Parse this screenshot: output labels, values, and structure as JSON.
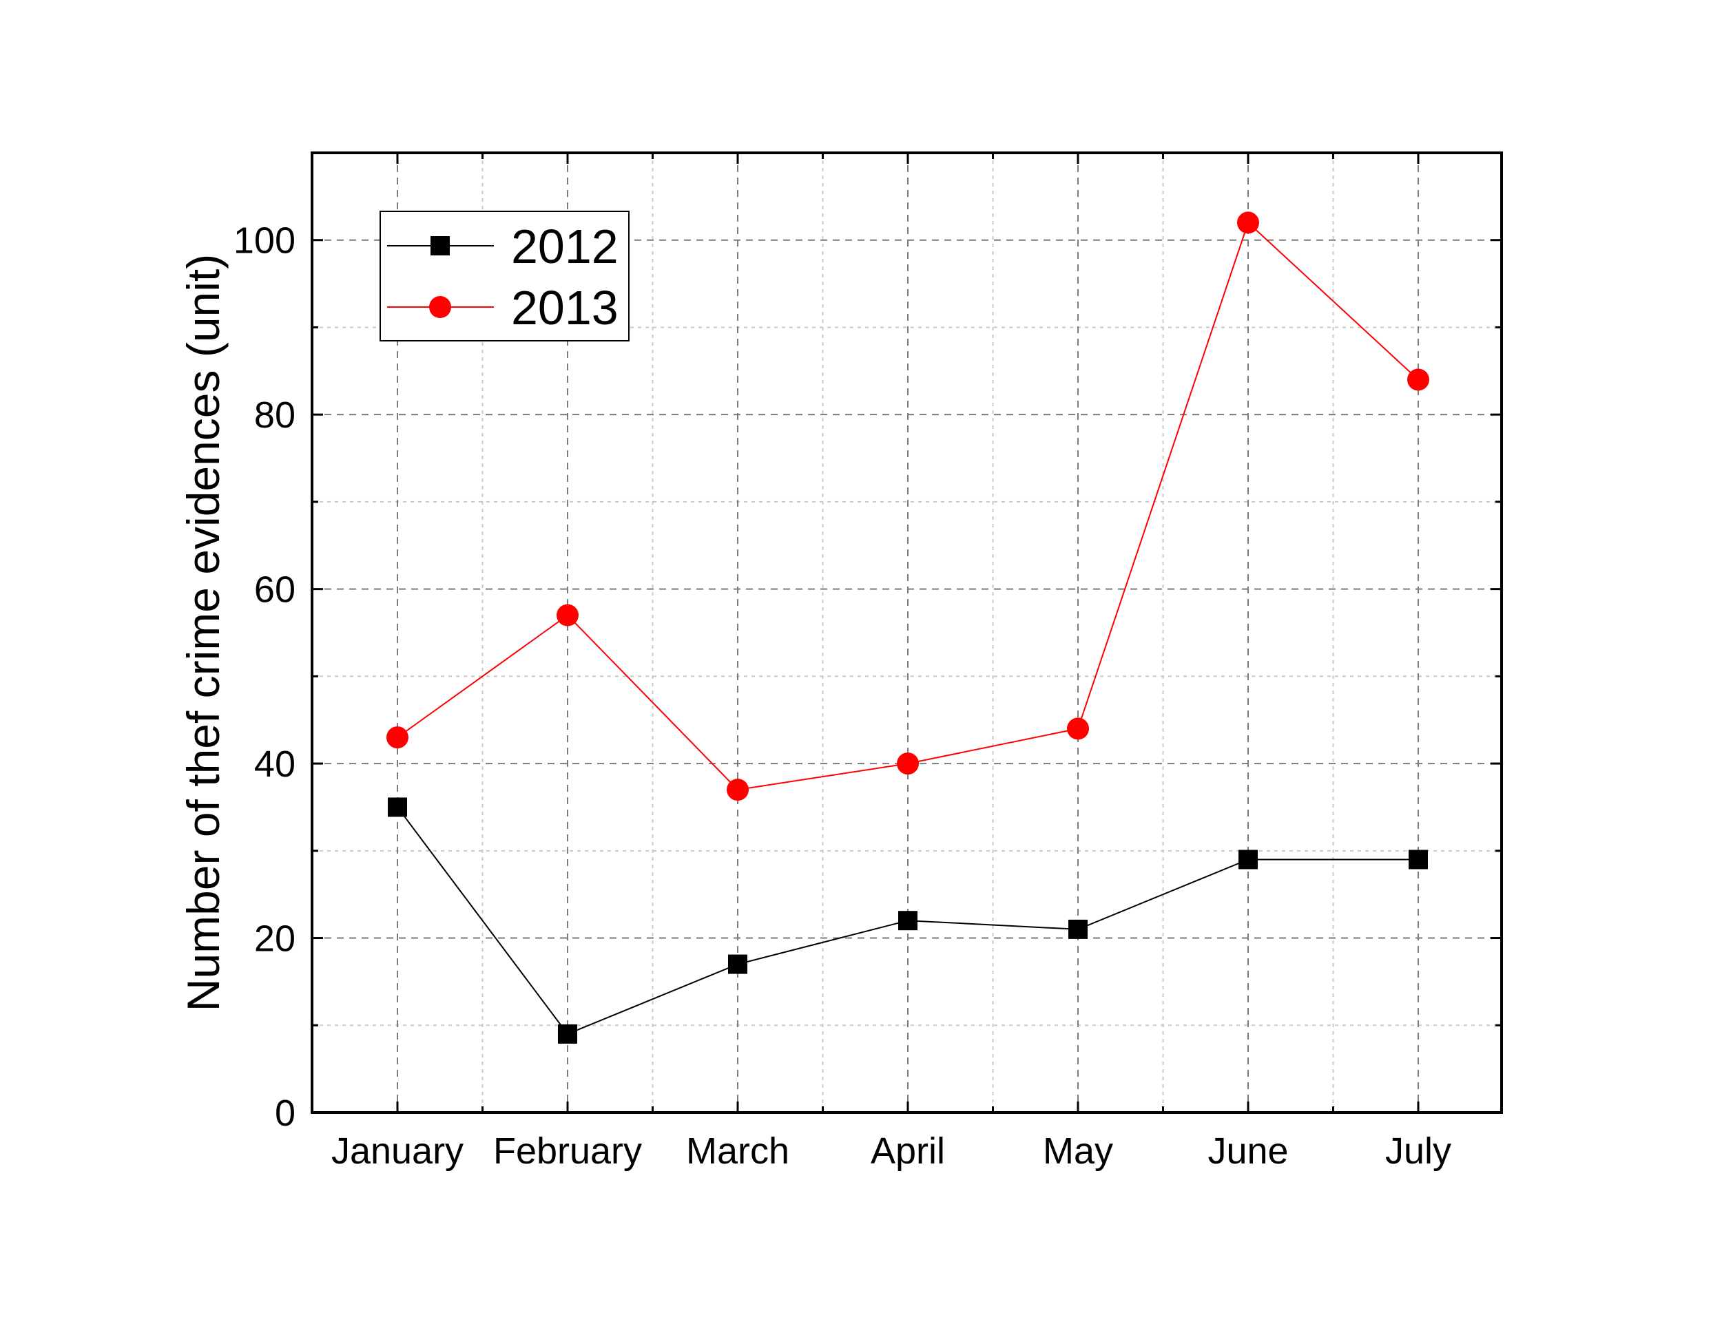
{
  "chart_data": {
    "type": "line",
    "categories": [
      "January",
      "February",
      "March",
      "April",
      "May",
      "June",
      "July"
    ],
    "series": [
      {
        "name": "2012",
        "values": [
          35,
          9,
          17,
          22,
          21,
          29,
          29
        ],
        "color": "#000000",
        "marker": "square"
      },
      {
        "name": "2013",
        "values": [
          43,
          57,
          37,
          40,
          44,
          102,
          84
        ],
        "color": "#ff0000",
        "marker": "circle"
      }
    ],
    "title": "",
    "xlabel": "",
    "ylabel": "Number of thef crime evidences (unit)",
    "ylim": [
      0,
      110
    ],
    "yticks": [
      0,
      20,
      40,
      60,
      80,
      100
    ],
    "grid": true,
    "legend_position": "top-left"
  }
}
